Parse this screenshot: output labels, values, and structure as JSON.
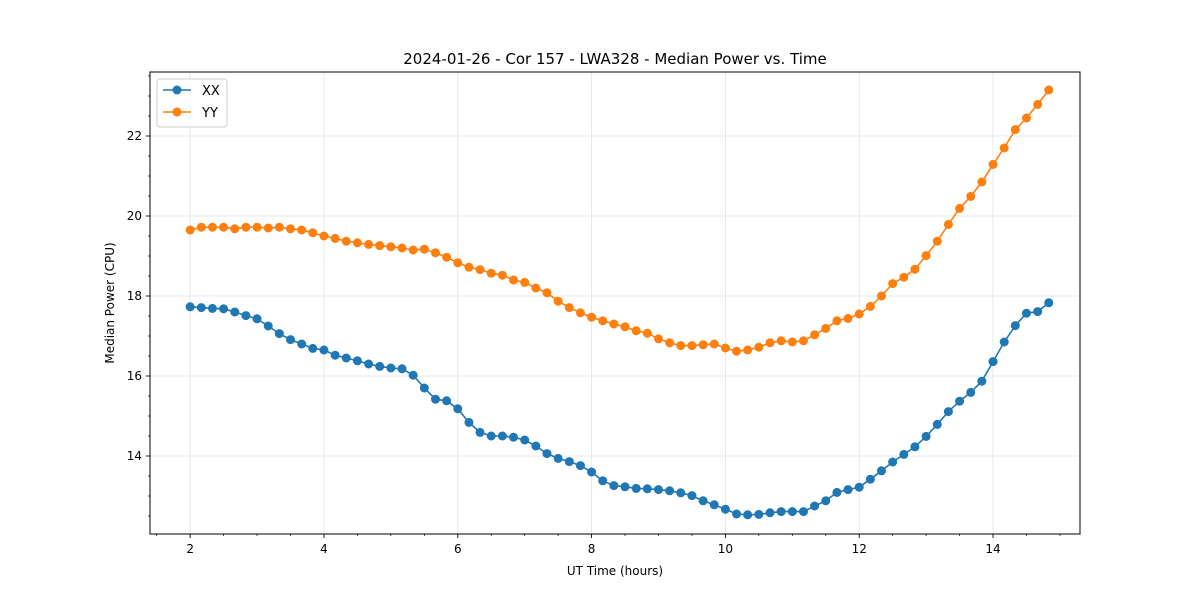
{
  "chart_data": {
    "type": "line",
    "title": "2024-01-26 - Cor 157 - LWA328 - Median Power vs. Time",
    "xlabel": "UT Time (hours)",
    "ylabel": "Median Power (CPU)",
    "xlim": [
      1.4,
      15.3
    ],
    "ylim": [
      12.05,
      23.6
    ],
    "x_ticks": [
      2,
      4,
      6,
      8,
      10,
      12,
      14
    ],
    "y_ticks": [
      14,
      16,
      18,
      20,
      22
    ],
    "grid": true,
    "legend_position": "top-left",
    "x": [
      2.0,
      2.167,
      2.333,
      2.5,
      2.667,
      2.833,
      3.0,
      3.167,
      3.333,
      3.5,
      3.667,
      3.833,
      4.0,
      4.167,
      4.333,
      4.5,
      4.667,
      4.833,
      5.0,
      5.167,
      5.333,
      5.5,
      5.667,
      5.833,
      6.0,
      6.167,
      6.333,
      6.5,
      6.667,
      6.833,
      7.0,
      7.167,
      7.333,
      7.5,
      7.667,
      7.833,
      8.0,
      8.167,
      8.333,
      8.5,
      8.667,
      8.833,
      9.0,
      9.167,
      9.333,
      9.5,
      9.667,
      9.833,
      10.0,
      10.167,
      10.333,
      10.5,
      10.667,
      10.833,
      11.0,
      11.167,
      11.333,
      11.5,
      11.667,
      11.833,
      12.0,
      12.167,
      12.333,
      12.5,
      12.667,
      12.833,
      13.0,
      13.167,
      13.333,
      13.5,
      13.667,
      13.833,
      14.0,
      14.167,
      14.333,
      14.5,
      14.667,
      14.833
    ],
    "series": [
      {
        "name": "XX",
        "color": "#1f77b4",
        "values": [
          17.73,
          17.71,
          17.69,
          17.68,
          17.6,
          17.51,
          17.43,
          17.25,
          17.06,
          16.91,
          16.8,
          16.69,
          16.65,
          16.52,
          16.45,
          16.38,
          16.3,
          16.24,
          16.2,
          16.18,
          16.02,
          15.7,
          15.42,
          15.38,
          15.18,
          14.84,
          14.59,
          14.5,
          14.5,
          14.47,
          14.4,
          14.25,
          14.06,
          13.94,
          13.86,
          13.76,
          13.6,
          13.38,
          13.26,
          13.23,
          13.19,
          13.18,
          13.16,
          13.13,
          13.08,
          13.01,
          12.88,
          12.78,
          12.67,
          12.55,
          12.53,
          12.54,
          12.58,
          12.61,
          12.61,
          12.61,
          12.75,
          12.88,
          13.09,
          13.16,
          13.22,
          13.42,
          13.63,
          13.85,
          14.04,
          14.23,
          14.49,
          14.79,
          15.11,
          15.37,
          15.59,
          15.87,
          16.36,
          16.85,
          17.26,
          17.57,
          17.61,
          17.83
        ]
      },
      {
        "name": "YY",
        "color": "#ff7f0e",
        "values": [
          19.65,
          19.72,
          19.72,
          19.72,
          19.68,
          19.72,
          19.72,
          19.7,
          19.72,
          19.68,
          19.65,
          19.58,
          19.5,
          19.44,
          19.37,
          19.33,
          19.29,
          19.26,
          19.23,
          19.2,
          19.15,
          19.17,
          19.08,
          18.97,
          18.83,
          18.72,
          18.66,
          18.57,
          18.52,
          18.4,
          18.34,
          18.2,
          18.08,
          17.87,
          17.71,
          17.58,
          17.47,
          17.38,
          17.3,
          17.23,
          17.13,
          17.07,
          16.93,
          16.83,
          16.76,
          16.76,
          16.78,
          16.8,
          16.7,
          16.62,
          16.65,
          16.72,
          16.83,
          16.88,
          16.85,
          16.88,
          17.03,
          17.19,
          17.38,
          17.44,
          17.55,
          17.74,
          18.0,
          18.31,
          18.47,
          18.67,
          19.01,
          19.37,
          19.79,
          20.19,
          20.49,
          20.85,
          21.29,
          21.7,
          22.16,
          22.45,
          22.79,
          23.15
        ]
      }
    ]
  }
}
